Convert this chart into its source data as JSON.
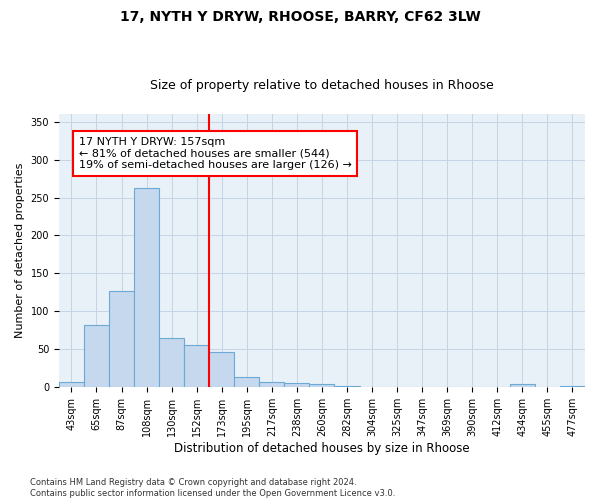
{
  "title_line1": "17, NYTH Y DRYW, RHOOSE, BARRY, CF62 3LW",
  "title_line2": "Size of property relative to detached houses in Rhoose",
  "xlabel": "Distribution of detached houses by size in Rhoose",
  "ylabel": "Number of detached properties",
  "footnote": "Contains HM Land Registry data © Crown copyright and database right 2024.\nContains public sector information licensed under the Open Government Licence v3.0.",
  "bin_labels": [
    "43sqm",
    "65sqm",
    "87sqm",
    "108sqm",
    "130sqm",
    "152sqm",
    "173sqm",
    "195sqm",
    "217sqm",
    "238sqm",
    "260sqm",
    "282sqm",
    "304sqm",
    "325sqm",
    "347sqm",
    "369sqm",
    "390sqm",
    "412sqm",
    "434sqm",
    "455sqm",
    "477sqm"
  ],
  "bar_values": [
    7,
    82,
    127,
    263,
    65,
    56,
    46,
    13,
    7,
    6,
    5,
    2,
    1,
    1,
    0,
    0,
    1,
    0,
    4,
    0,
    2
  ],
  "bar_color": "#c5d8ee",
  "bar_edge_color": "#6aaad4",
  "red_line_x": 5.5,
  "annotation_text_line1": "17 NYTH Y DRYW: 157sqm",
  "annotation_text_line2": "← 81% of detached houses are smaller (544)",
  "annotation_text_line3": "19% of semi-detached houses are larger (126) →",
  "ylim": [
    0,
    360
  ],
  "yticks": [
    0,
    50,
    100,
    150,
    200,
    250,
    300,
    350
  ],
  "background_color": "#ffffff",
  "plot_bg_color": "#e8f0f8",
  "grid_color": "#c5d5e5",
  "title1_fontsize": 10,
  "title2_fontsize": 9,
  "ylabel_fontsize": 8,
  "xlabel_fontsize": 8.5,
  "tick_fontsize": 7,
  "footnote_fontsize": 6,
  "annot_fontsize": 8
}
